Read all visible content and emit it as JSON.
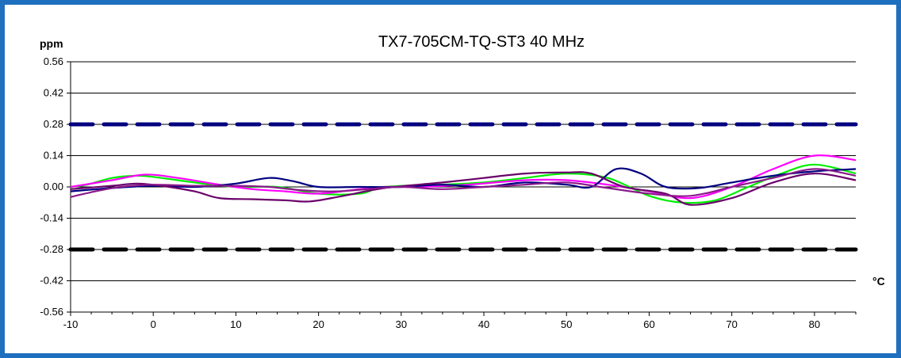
{
  "chart_data": {
    "type": "line",
    "title": "TX7-705CM-TQ-ST3 40 MHz",
    "ylabel": "ppm",
    "xlabel": "°C",
    "xlim": [
      -10,
      85
    ],
    "ylim": [
      -0.56,
      0.56
    ],
    "x_ticks": [
      -10,
      0,
      10,
      20,
      30,
      40,
      50,
      60,
      70,
      80
    ],
    "y_ticks": [
      0.56,
      0.42,
      0.28,
      0.14,
      0.0,
      -0.14,
      -0.28,
      -0.42,
      -0.56
    ],
    "y_tick_labels": [
      "0.56",
      "0.42",
      "0.28",
      "0.14",
      "0.00",
      "-0.14",
      "-0.28",
      "-0.42",
      "-0.56"
    ],
    "grid": "horizontal",
    "limits": [
      {
        "value": 0.28,
        "color": "#000080",
        "style": "dashed"
      },
      {
        "value": -0.28,
        "color": "#000000",
        "style": "dashed"
      }
    ],
    "series": [
      {
        "color": "#00ee00",
        "points": [
          [
            -10,
            0.0
          ],
          [
            -8,
            0.01
          ],
          [
            -5,
            0.04
          ],
          [
            -2,
            0.05
          ],
          [
            0,
            0.045
          ],
          [
            5,
            0.02
          ],
          [
            10,
            0.0
          ],
          [
            15,
            0.0
          ],
          [
            20,
            -0.03
          ],
          [
            25,
            -0.03
          ],
          [
            28,
            0.0
          ],
          [
            35,
            0.01
          ],
          [
            40,
            0.02
          ],
          [
            45,
            0.04
          ],
          [
            50,
            0.06
          ],
          [
            55,
            0.04
          ],
          [
            60,
            -0.04
          ],
          [
            64,
            -0.07
          ],
          [
            68,
            -0.06
          ],
          [
            72,
            0.0
          ],
          [
            76,
            0.06
          ],
          [
            80,
            0.1
          ],
          [
            85,
            0.06
          ]
        ]
      },
      {
        "color": "#ff00ff",
        "points": [
          [
            -10,
            0.0
          ],
          [
            -5,
            0.03
          ],
          [
            -1,
            0.055
          ],
          [
            3,
            0.04
          ],
          [
            8,
            0.01
          ],
          [
            12,
            -0.01
          ],
          [
            16,
            -0.02
          ],
          [
            20,
            -0.03
          ],
          [
            25,
            -0.01
          ],
          [
            28,
            0.0
          ],
          [
            32,
            0.0
          ],
          [
            38,
            0.01
          ],
          [
            45,
            0.03
          ],
          [
            50,
            0.03
          ],
          [
            55,
            0.01
          ],
          [
            60,
            -0.02
          ],
          [
            65,
            -0.05
          ],
          [
            70,
            0.0
          ],
          [
            75,
            0.08
          ],
          [
            80,
            0.14
          ],
          [
            85,
            0.12
          ]
        ]
      },
      {
        "color": "#000080",
        "points": [
          [
            -10,
            -0.02
          ],
          [
            -5,
            -0.005
          ],
          [
            0,
            0.005
          ],
          [
            5,
            0.0
          ],
          [
            10,
            0.015
          ],
          [
            14,
            0.04
          ],
          [
            17,
            0.025
          ],
          [
            20,
            0.0
          ],
          [
            25,
            0.0
          ],
          [
            30,
            0.0
          ],
          [
            35,
            0.01
          ],
          [
            40,
            0.0
          ],
          [
            45,
            0.02
          ],
          [
            50,
            0.01
          ],
          [
            53,
            0.0
          ],
          [
            56,
            0.08
          ],
          [
            59,
            0.06
          ],
          [
            62,
            0.0
          ],
          [
            66,
            -0.005
          ],
          [
            70,
            0.02
          ],
          [
            75,
            0.05
          ],
          [
            80,
            0.07
          ],
          [
            85,
            0.08
          ]
        ]
      },
      {
        "color": "#6a006a",
        "points": [
          [
            -10,
            -0.01
          ],
          [
            -5,
            0.005
          ],
          [
            -2,
            0.015
          ],
          [
            1,
            0.005
          ],
          [
            5,
            -0.02
          ],
          [
            8,
            -0.05
          ],
          [
            12,
            -0.055
          ],
          [
            16,
            -0.06
          ],
          [
            19,
            -0.065
          ],
          [
            23,
            -0.04
          ],
          [
            28,
            -0.005
          ],
          [
            35,
            0.02
          ],
          [
            40,
            0.04
          ],
          [
            45,
            0.06
          ],
          [
            50,
            0.065
          ],
          [
            53,
            0.06
          ],
          [
            57,
            0.0
          ],
          [
            62,
            -0.03
          ],
          [
            65,
            -0.08
          ],
          [
            70,
            -0.05
          ],
          [
            75,
            0.02
          ],
          [
            80,
            0.06
          ],
          [
            85,
            0.03
          ]
        ]
      },
      {
        "color": "#8b1a8b",
        "points": [
          [
            -10,
            -0.045
          ],
          [
            -7,
            -0.02
          ],
          [
            -4,
            0.0
          ],
          [
            0,
            0.01
          ],
          [
            5,
            0.005
          ],
          [
            10,
            0.005
          ],
          [
            14,
            0.0
          ],
          [
            18,
            -0.015
          ],
          [
            22,
            -0.02
          ],
          [
            26,
            -0.01
          ],
          [
            30,
            0.0
          ],
          [
            35,
            -0.01
          ],
          [
            40,
            0.0
          ],
          [
            45,
            0.01
          ],
          [
            50,
            0.02
          ],
          [
            55,
            -0.005
          ],
          [
            60,
            -0.03
          ],
          [
            65,
            -0.04
          ],
          [
            70,
            0.0
          ],
          [
            75,
            0.04
          ],
          [
            80,
            0.08
          ],
          [
            85,
            0.05
          ]
        ]
      }
    ]
  }
}
